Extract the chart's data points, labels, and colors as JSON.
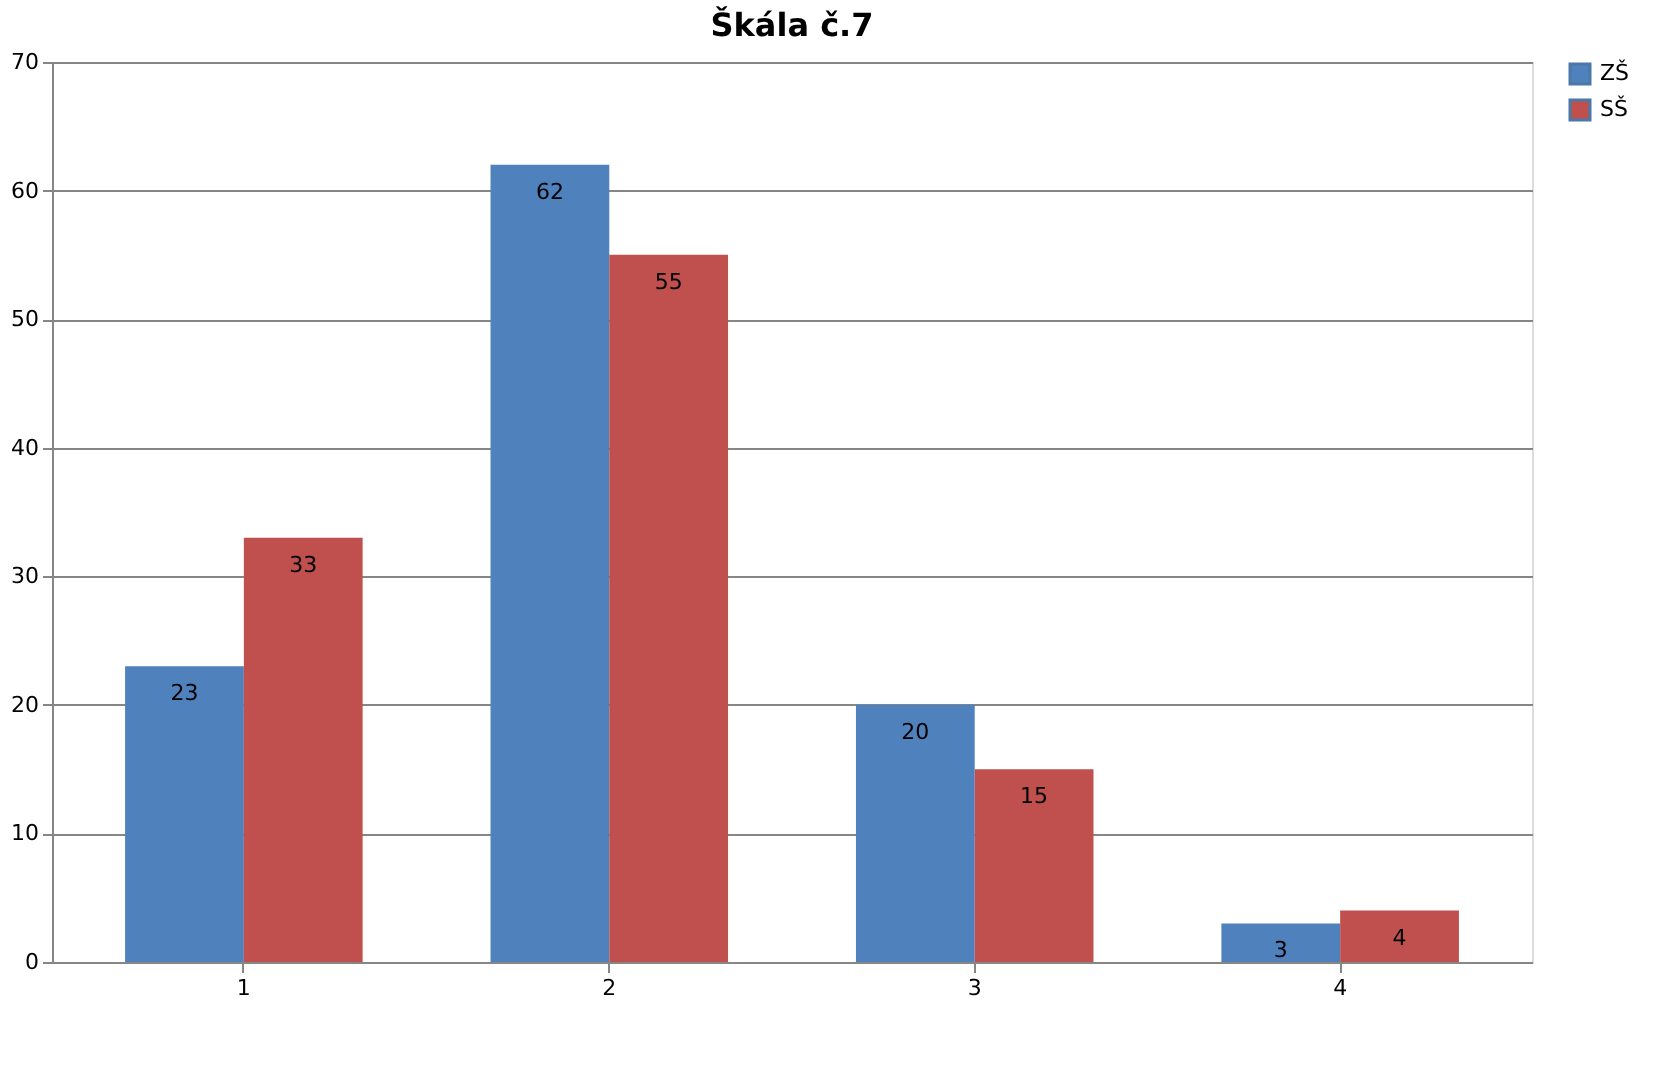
{
  "chart_data": {
    "type": "bar",
    "title": "Škála č.7",
    "categories": [
      "1",
      "2",
      "3",
      "4"
    ],
    "series": [
      {
        "name": "ZŠ",
        "color": "#4f81bd",
        "values": [
          23,
          62,
          20,
          3
        ]
      },
      {
        "name": "SŠ",
        "color": "#c0504d",
        "values": [
          33,
          55,
          15,
          4
        ]
      }
    ],
    "ylim": [
      0,
      70
    ],
    "yticks": [
      0,
      10,
      20,
      30,
      40,
      50,
      60,
      70
    ],
    "grid": "y",
    "legend": "right",
    "data_labels": true
  }
}
